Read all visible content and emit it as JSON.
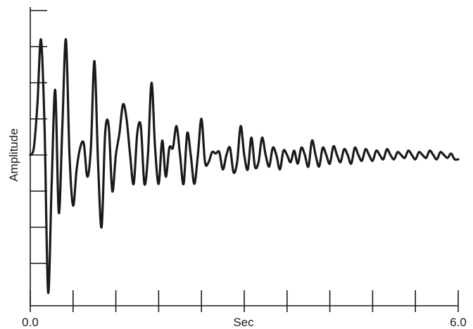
{
  "chart_data": {
    "type": "line",
    "xlabel": "Sec",
    "ylabel": "Amplitude",
    "xlim": [
      0,
      6.0
    ],
    "x_tick_labels": [
      "0.0",
      "6.0"
    ],
    "x_major_ticks": [
      0,
      0.6,
      1.2,
      1.8,
      2.4,
      3.0,
      3.6,
      4.2,
      4.8,
      5.4,
      6.0
    ],
    "ylim": [
      -1.0,
      1.0
    ],
    "y_major_ticks": [
      -0.75,
      -0.5,
      -0.25,
      0,
      0.25,
      0.5,
      0.75,
      1.0
    ],
    "grid": false,
    "series": [
      {
        "x": [
          0.0,
          0.05,
          0.1,
          0.15,
          0.2,
          0.25,
          0.3,
          0.35,
          0.4,
          0.45,
          0.5,
          0.55,
          0.6,
          0.65,
          0.7,
          0.75,
          0.8,
          0.85,
          0.9,
          0.95,
          1.0,
          1.05,
          1.1,
          1.15,
          1.2,
          1.25,
          1.3,
          1.35,
          1.4,
          1.45,
          1.5,
          1.55,
          1.6,
          1.65,
          1.7,
          1.75,
          1.8,
          1.85,
          1.9,
          1.95,
          2.0,
          2.05,
          2.1,
          2.15,
          2.2,
          2.25,
          2.3,
          2.35,
          2.4,
          2.45,
          2.5,
          2.55,
          2.6,
          2.65,
          2.7,
          2.75,
          2.8,
          2.85,
          2.9,
          2.95,
          3.0,
          3.05,
          3.1,
          3.15,
          3.2,
          3.25,
          3.3,
          3.35,
          3.4,
          3.45,
          3.5,
          3.55,
          3.6,
          3.65,
          3.7,
          3.75,
          3.8,
          3.85,
          3.9,
          3.95,
          4.0,
          4.05,
          4.1,
          4.15,
          4.2,
          4.25,
          4.3,
          4.35,
          4.4,
          4.45,
          4.5,
          4.55,
          4.6,
          4.65,
          4.7,
          4.75,
          4.8,
          4.85,
          4.9,
          4.95,
          5.0,
          5.05,
          5.1,
          5.15,
          5.2,
          5.25,
          5.3,
          5.35,
          5.4,
          5.45,
          5.5,
          5.55,
          5.6,
          5.65,
          5.7,
          5.75,
          5.8,
          5.85,
          5.9,
          5.95,
          6.0
        ],
        "values": [
          0.0,
          0.05,
          0.35,
          0.8,
          0.2,
          -0.95,
          -0.2,
          0.45,
          -0.4,
          0.2,
          0.8,
          0.0,
          -0.35,
          -0.1,
          0.05,
          0.08,
          -0.15,
          0.05,
          0.65,
          -0.05,
          -0.5,
          0.15,
          0.2,
          -0.25,
          0.0,
          0.15,
          0.35,
          0.25,
          0.0,
          -0.2,
          0.15,
          0.2,
          -0.2,
          0.0,
          0.5,
          0.05,
          -0.2,
          0.1,
          -0.15,
          0.05,
          0.05,
          0.2,
          0.0,
          -0.2,
          0.15,
          0.0,
          -0.2,
          0.0,
          0.25,
          -0.05,
          -0.05,
          0.02,
          0.01,
          0.02,
          -0.1,
          0.0,
          0.05,
          -0.12,
          -0.05,
          0.2,
          0.0,
          -0.1,
          0.12,
          -0.08,
          -0.05,
          0.12,
          0.0,
          -0.08,
          0.05,
          0.0,
          -0.1,
          0.03,
          0.0,
          -0.05,
          0.03,
          -0.06,
          0.05,
          0.0,
          -0.08,
          0.1,
          0.0,
          -0.08,
          0.05,
          0.0,
          -0.06,
          0.06,
          0.0,
          -0.05,
          0.04,
          0.0,
          -0.06,
          0.05,
          0.0,
          -0.04,
          0.04,
          0.0,
          -0.04,
          0.03,
          0.0,
          -0.03,
          0.04,
          0.0,
          -0.03,
          0.02,
          0.0,
          -0.02,
          0.03,
          0.0,
          -0.03,
          0.02,
          0.0,
          -0.02,
          0.03,
          0.0,
          -0.03,
          0.02,
          0.0,
          -0.02,
          0.01,
          -0.03,
          -0.03
        ]
      }
    ]
  }
}
